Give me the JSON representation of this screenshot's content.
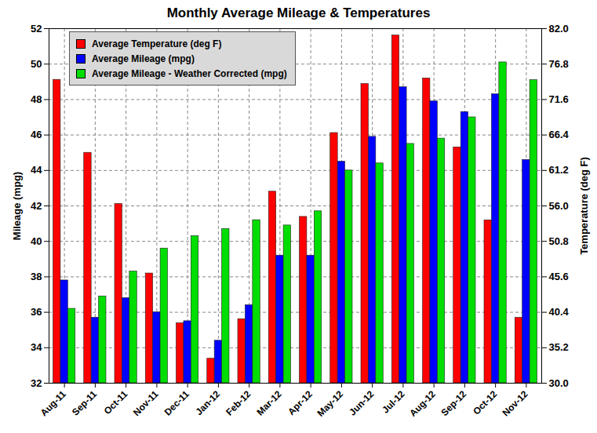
{
  "chart_data": {
    "type": "bar",
    "title": "Monthly Average Mileage & Temperatures",
    "categories": [
      "Aug-11",
      "Sep-11",
      "Oct-11",
      "Nov-11",
      "Dec-11",
      "Jan-12",
      "Feb-12",
      "Mar-12",
      "Apr-12",
      "May-12",
      "Jun-12",
      "Jul-12",
      "Aug-12",
      "Sep-12",
      "Oct-12",
      "Nov-12"
    ],
    "series": [
      {
        "name": "Average Temperature (deg F)",
        "color": "#ff0000",
        "axis": "y2",
        "values": [
          74.5,
          63.8,
          56.3,
          46.1,
          38.8,
          33.6,
          39.4,
          58.1,
          54.4,
          66.7,
          73.9,
          81.0,
          74.7,
          64.6,
          53.9,
          39.6
        ]
      },
      {
        "name": "Average Mileage (mpg)",
        "color": "#0000ff",
        "values": [
          37.8,
          35.7,
          36.8,
          36.0,
          35.5,
          34.4,
          36.4,
          39.2,
          39.2,
          44.5,
          45.9,
          48.7,
          47.9,
          47.3,
          48.3,
          44.6
        ]
      },
      {
        "name": "Average Mileage - Weather Corrected (mpg)",
        "color": "#00dd00",
        "values": [
          36.2,
          36.9,
          38.3,
          39.6,
          40.3,
          40.7,
          41.2,
          40.9,
          41.7,
          44.0,
          44.4,
          45.5,
          45.8,
          47.0,
          50.1,
          49.1
        ]
      }
    ],
    "ylabel": "Mileage (mpg)",
    "y2label": "Temperature (deg F)",
    "ylim": [
      32,
      52
    ],
    "yticks": [
      32,
      34,
      36,
      38,
      40,
      42,
      44,
      46,
      48,
      50,
      52
    ],
    "y2lim": [
      30,
      82
    ],
    "y2ticks": [
      {
        "value": 30,
        "label": "30.0"
      },
      {
        "value": 35.2,
        "label": "35.2"
      },
      {
        "value": 40.4,
        "label": "40.4"
      },
      {
        "value": 45.6,
        "label": "45.6"
      },
      {
        "value": 50.8,
        "label": "50.8"
      },
      {
        "value": 56,
        "label": "56.0"
      },
      {
        "value": 61.2,
        "label": "61.2"
      },
      {
        "value": 66.4,
        "label": "66.4"
      },
      {
        "value": 71.6,
        "label": "71.6"
      },
      {
        "value": 76.8,
        "label": "76.8"
      },
      {
        "value": 82,
        "label": "82.0"
      }
    ],
    "grid": true,
    "legend": "upper left"
  }
}
